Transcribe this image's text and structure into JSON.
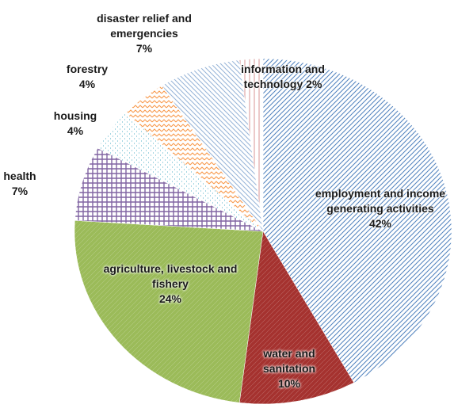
{
  "chart_data": {
    "type": "pie",
    "categories": [
      "employment and income generating activities",
      "water and sanitation",
      "agriculture, livestock and fishery",
      "health",
      "housing",
      "forestry",
      "disaster relief and emergencies",
      "information and technology"
    ],
    "values": [
      42,
      10,
      24,
      7,
      4,
      4,
      7,
      2
    ],
    "value_labels": [
      "42%",
      "10%",
      "24%",
      "7%",
      "4%",
      "4%",
      "7%",
      "2%"
    ],
    "colors": [
      "#4f81bd",
      "#a5322f",
      "#9bbb59",
      "#8064a2",
      "#4bacc6",
      "#f79646",
      "#95b3d7",
      "#d99694"
    ]
  }
}
